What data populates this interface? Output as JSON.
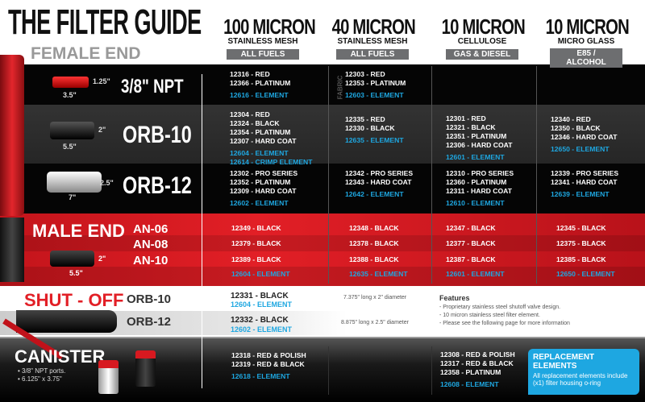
{
  "title": "THE FILTER GUIDE",
  "female_end_label": "FEMALE END",
  "columns": [
    {
      "title": "100 MICRON",
      "subtitle": "STAINLESS MESH",
      "fuel": "ALL FUELS"
    },
    {
      "title": "40 MICRON",
      "subtitle": "STAINLESS MESH",
      "fuel": "ALL FUELS"
    },
    {
      "title": "10 MICRON",
      "subtitle": "CELLULOSE",
      "fuel": "GAS & DIESEL"
    },
    {
      "title": "10 MICRON",
      "subtitle": "MICRO GLASS",
      "fuel": "E85 / ALCOHOL"
    }
  ],
  "fabric_label": "FABRIC",
  "rows": [
    {
      "label": "3/8\" NPT",
      "dims": [
        "1.25\"",
        "3.5\""
      ],
      "cells": [
        [
          {
            "t": "12316 - RED"
          },
          {
            "t": "12366 - PLATINUM"
          },
          {
            "t": "12616 - ELEMENT",
            "el": true
          }
        ],
        [
          {
            "t": "12303 - RED"
          },
          {
            "t": "12353 - PLATINUM"
          },
          {
            "t": "12603 - ELEMENT",
            "el": true
          }
        ],
        [],
        []
      ]
    },
    {
      "label": "ORB-10",
      "dims": [
        "2\"",
        "5.5\""
      ],
      "cells": [
        [
          {
            "t": "12304 - RED"
          },
          {
            "t": "12324 - BLACK"
          },
          {
            "t": "12354 - PLATINUM"
          },
          {
            "t": "12307 - HARD COAT"
          },
          {
            "t": "12604 - ELEMENT",
            "el": true
          },
          {
            "t": "12614 - CRIMP ELEMENT",
            "el": true
          }
        ],
        [
          {
            "t": "12335 - RED"
          },
          {
            "t": "12330 - BLACK"
          },
          {
            "t": "12635 - ELEMENT",
            "el": true
          }
        ],
        [
          {
            "t": "12301 - RED"
          },
          {
            "t": "12321 - BLACK"
          },
          {
            "t": "12351 - PLATINUM"
          },
          {
            "t": "12306 - HARD COAT"
          },
          {
            "t": "12601 - ELEMENT",
            "el": true
          }
        ],
        [
          {
            "t": "12340 - RED"
          },
          {
            "t": "12350 - BLACK"
          },
          {
            "t": "12346 - HARD COAT"
          },
          {
            "t": "12650 - ELEMENT",
            "el": true
          }
        ]
      ]
    },
    {
      "label": "ORB-12",
      "dims": [
        "2.5\"",
        "7\""
      ],
      "cells": [
        [
          {
            "t": "12302 - PRO SERIES"
          },
          {
            "t": "12352 - PLATINUM"
          },
          {
            "t": "12309 - HARD COAT"
          },
          {
            "t": "12602 - ELEMENT",
            "el": true
          }
        ],
        [
          {
            "t": "12342 - PRO SERIES"
          },
          {
            "t": "12343 - HARD COAT"
          },
          {
            "t": "12642 - ELEMENT",
            "el": true
          }
        ],
        [
          {
            "t": "12310 - PRO SERIES"
          },
          {
            "t": "12360 - PLATINUM"
          },
          {
            "t": "12311 - HARD COAT"
          },
          {
            "t": "12610 - ELEMENT",
            "el": true
          }
        ],
        [
          {
            "t": "12339 - PRO SERIES"
          },
          {
            "t": "12341 - HARD COAT"
          },
          {
            "t": "12639 - ELEMENT",
            "el": true
          }
        ]
      ]
    }
  ],
  "male_end": {
    "label": "MALE END",
    "sizes": [
      "AN-06",
      "AN-08",
      "AN-10"
    ],
    "dims": [
      "2\"",
      "5.5\""
    ],
    "cells": [
      [
        "12349 - BLACK",
        "12379 - BLACK",
        "12389 - BLACK",
        "12604 - ELEMENT"
      ],
      [
        "12348 - BLACK",
        "12378 - BLACK",
        "12388 - BLACK",
        "12635 - ELEMENT"
      ],
      [
        "12347 - BLACK",
        "12377 - BLACK",
        "12387 - BLACK",
        "12601 - ELEMENT"
      ],
      [
        "12345 - BLACK",
        "12375 - BLACK",
        "12385 - BLACK",
        "12650 - ELEMENT"
      ]
    ]
  },
  "shut_off": {
    "label": "SHUT - OFF",
    "items": [
      {
        "size": "ORB-10",
        "part": "12331 - BLACK",
        "element": "12604 - ELEMENT",
        "dims": "7.375\" long x 2\" diameter"
      },
      {
        "size": "ORB-12",
        "part": "12332 - BLACK",
        "element": "12602 - ELEMENT",
        "dims": "8.875\" long x 2.5\" diameter"
      }
    ],
    "features_title": "Features",
    "features": [
      "- Proprietary stainless steel shutoff valve design.",
      "- 10 micron stainless steel filter element.",
      "- Please see the following page for more information"
    ]
  },
  "canister": {
    "label": "CANISTER",
    "bullets": [
      "• 3/8\" NPT ports.",
      "• 6.125\" x 3.75\""
    ],
    "col1": [
      "12318 - RED & POLISH",
      "12319 - RED & BLACK",
      "12618 - ELEMENT"
    ],
    "col3": [
      "12308 - RED & POLISH",
      "12317 - RED & BLACK",
      "12358 - PLATINUM",
      "12608 - ELEMENT"
    ]
  },
  "callout": {
    "title": "REPLACEMENT ELEMENTS",
    "body": "All replacement elements include (x1) filter housing o-ring"
  },
  "colors": {
    "red": "#d71920",
    "blue": "#1ea7e1",
    "gray_badge": "#6d6e70"
  }
}
